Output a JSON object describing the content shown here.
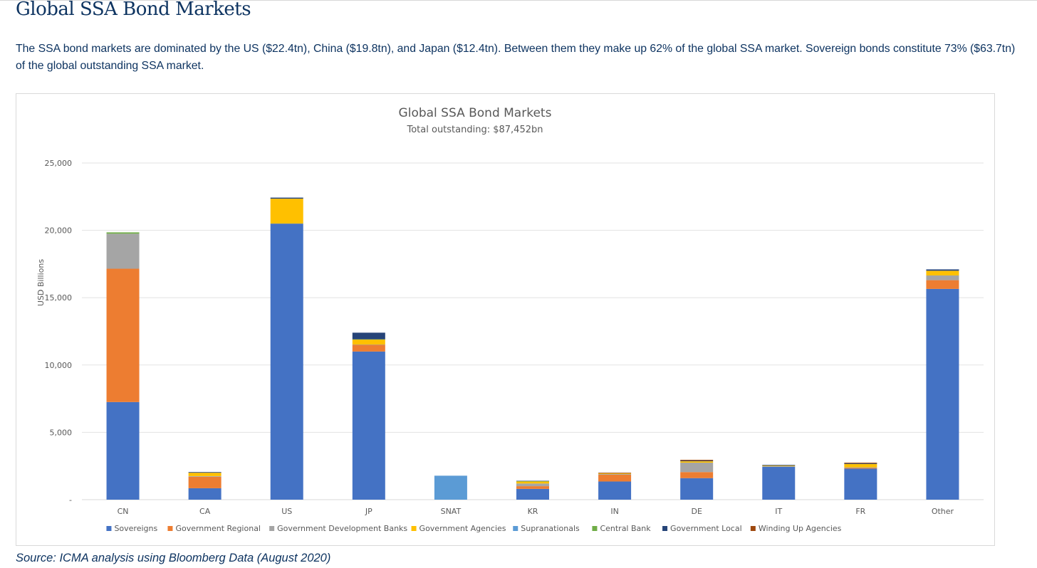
{
  "page": {
    "title": "Global SSA Bond Markets",
    "intro": "The SSA bond markets are dominated by the US ($22.4tn), China ($19.8tn), and Japan ($12.4tn). Between them they make up 62% of the global SSA market. Sovereign bonds constitute 73% ($63.7tn) of the global outstanding SSA market.",
    "source": "Source: ICMA analysis using Bloomberg Data (August 2020)"
  },
  "chart_data": {
    "type": "bar",
    "stacked": true,
    "title": "Global SSA Bond Markets",
    "subtitle": "Total outstanding: $87,452bn",
    "xlabel": "",
    "ylabel": "USD Billions",
    "ylim": [
      0,
      25000
    ],
    "yticks": [
      0,
      5000,
      10000,
      15000,
      20000,
      25000
    ],
    "ytick_labels": [
      "-",
      "5,000",
      "10,000",
      "15,000",
      "20,000",
      "25,000"
    ],
    "grid": true,
    "legend_position": "bottom",
    "categories": [
      "CN",
      "CA",
      "US",
      "JP",
      "SNAT",
      "KR",
      "IN",
      "DE",
      "IT",
      "FR",
      "Other"
    ],
    "series": [
      {
        "name": "Sovereigns",
        "color": "#4472c4",
        "values": [
          7250,
          850,
          20500,
          11000,
          0,
          800,
          1350,
          1600,
          2450,
          2300,
          15650
        ]
      },
      {
        "name": "Government Regional",
        "color": "#ed7d31",
        "values": [
          9900,
          850,
          0,
          500,
          0,
          200,
          500,
          450,
          0,
          50,
          650
        ]
      },
      {
        "name": "Government Development Banks",
        "color": "#a5a5a5",
        "values": [
          2600,
          50,
          0,
          20,
          0,
          200,
          50,
          700,
          30,
          50,
          350
        ]
      },
      {
        "name": "Government Agencies",
        "color": "#ffc000",
        "values": [
          0,
          250,
          1850,
          370,
          0,
          150,
          50,
          100,
          50,
          250,
          350
        ]
      },
      {
        "name": "Supranationals",
        "color": "#5b9bd5",
        "values": [
          0,
          0,
          0,
          0,
          1780,
          0,
          0,
          0,
          0,
          0,
          0
        ]
      },
      {
        "name": "Central Bank",
        "color": "#70ad47",
        "values": [
          100,
          0,
          0,
          20,
          0,
          30,
          0,
          0,
          0,
          0,
          0
        ]
      },
      {
        "name": "Government Local",
        "color": "#264478",
        "values": [
          0,
          50,
          80,
          490,
          0,
          20,
          0,
          50,
          50,
          50,
          100
        ]
      },
      {
        "name": "Winding Up Agencies",
        "color": "#9e480e",
        "values": [
          0,
          0,
          0,
          0,
          0,
          0,
          50,
          60,
          0,
          50,
          0
        ]
      }
    ]
  }
}
